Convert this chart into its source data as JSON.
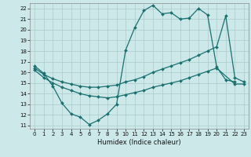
{
  "xlabel": "Humidex (Indice chaleur)",
  "bg_color": "#cce8e8",
  "grid_color": "#aacccc",
  "line_color": "#1a7070",
  "xlim": [
    -0.5,
    23.5
  ],
  "ylim": [
    10.7,
    22.5
  ],
  "x_ticks": [
    0,
    1,
    2,
    3,
    4,
    5,
    6,
    7,
    8,
    9,
    10,
    11,
    12,
    13,
    14,
    15,
    16,
    17,
    18,
    19,
    20,
    21,
    22,
    23
  ],
  "y_ticks": [
    11,
    12,
    13,
    14,
    15,
    16,
    17,
    18,
    19,
    20,
    21,
    22
  ],
  "series": [
    {
      "x": [
        0,
        1,
        2,
        3,
        4,
        5,
        6,
        7,
        8,
        9,
        10,
        11,
        12,
        13,
        14,
        15,
        16,
        17,
        18,
        19,
        20,
        21,
        22
      ],
      "y": [
        16.6,
        15.9,
        14.7,
        13.1,
        12.1,
        11.8,
        11.1,
        11.5,
        12.1,
        13.0,
        18.1,
        20.2,
        21.8,
        22.3,
        21.5,
        21.6,
        21.0,
        21.1,
        22.0,
        21.4,
        16.5,
        15.3,
        15.1
      ]
    },
    {
      "x": [
        0,
        1,
        2,
        3,
        4,
        5,
        6,
        7,
        8,
        9,
        10,
        11,
        12,
        13,
        14,
        15,
        16,
        17,
        18,
        19,
        20,
        21,
        22,
        23
      ],
      "y": [
        16.4,
        15.8,
        15.4,
        15.1,
        14.9,
        14.7,
        14.6,
        14.6,
        14.7,
        14.8,
        15.1,
        15.3,
        15.6,
        16.0,
        16.3,
        16.6,
        16.9,
        17.2,
        17.6,
        18.0,
        18.4,
        21.3,
        15.5,
        15.1
      ]
    },
    {
      "x": [
        0,
        1,
        2,
        3,
        4,
        5,
        6,
        7,
        8,
        9,
        10,
        11,
        12,
        13,
        14,
        15,
        16,
        17,
        18,
        19,
        20,
        22,
        23
      ],
      "y": [
        16.2,
        15.5,
        15.0,
        14.6,
        14.3,
        14.0,
        13.8,
        13.7,
        13.6,
        13.7,
        13.9,
        14.1,
        14.3,
        14.6,
        14.8,
        15.0,
        15.2,
        15.5,
        15.8,
        16.1,
        16.4,
        14.9,
        14.9
      ]
    }
  ]
}
